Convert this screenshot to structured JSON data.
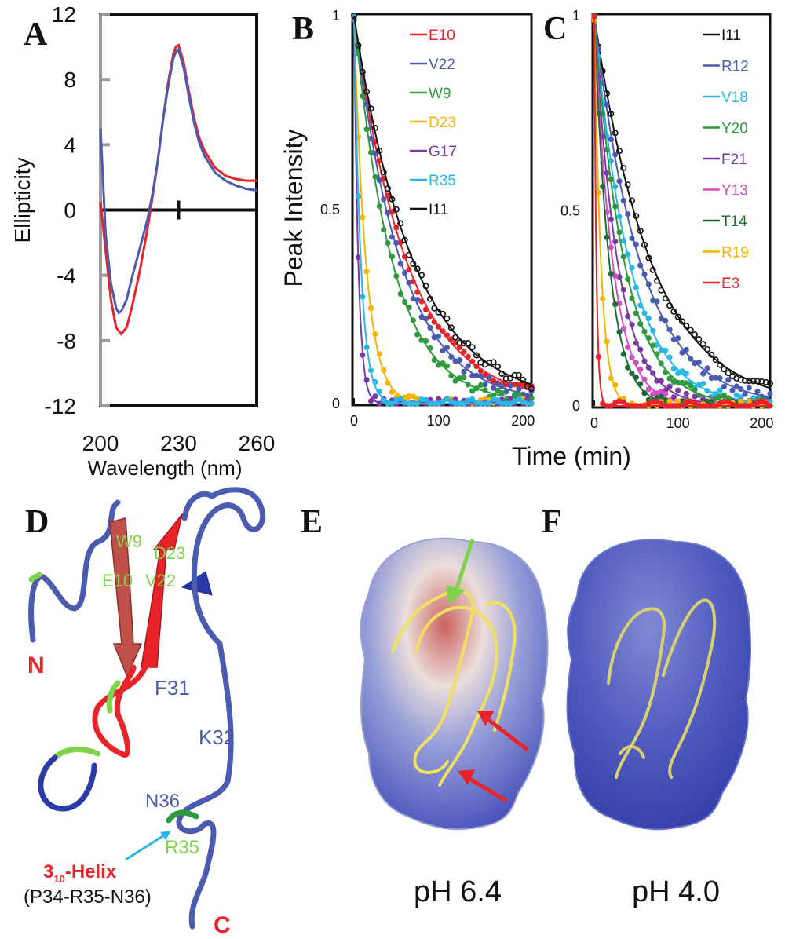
{
  "panels": {
    "A": "A",
    "B": "B",
    "C": "C",
    "D": "D",
    "E": "E",
    "F": "F"
  },
  "colors": {
    "red": "#e8232a",
    "blue": "#4b5bb0",
    "green": "#2e9a3e",
    "orange": "#f4b400",
    "purple": "#7a3aa6",
    "cyan": "#2ab7e6",
    "black": "#111111",
    "pink": "#d34fc0",
    "darkgreen": "#1c6b3a",
    "lime": "#7ed34a"
  },
  "chart_data": [
    {
      "panel": "A",
      "type": "line",
      "title": "",
      "xlabel": "Wavelength (nm)",
      "ylabel": "Ellipticity",
      "xlim": [
        200,
        260
      ],
      "ylim": [
        -12,
        12
      ],
      "xticks": [
        200,
        230,
        260
      ],
      "yticks": [
        12,
        8,
        4,
        0,
        -4,
        -8,
        -12
      ],
      "series": [
        {
          "color": "#e8232a",
          "x": [
            200,
            202,
            204,
            206,
            208,
            210,
            212,
            215,
            218,
            220,
            222,
            224,
            226,
            228,
            229,
            230,
            232,
            234,
            236,
            238,
            240,
            244,
            248,
            252,
            256,
            260
          ],
          "y": [
            0.5,
            -2.5,
            -5.5,
            -7.2,
            -7.6,
            -7.2,
            -6.0,
            -3.8,
            -1.2,
            0.8,
            3.0,
            5.5,
            7.8,
            9.6,
            10.0,
            10.1,
            9.0,
            7.2,
            5.6,
            4.4,
            3.6,
            2.6,
            2.1,
            1.9,
            1.8,
            1.8
          ]
        },
        {
          "color": "#4b5bb0",
          "x": [
            200,
            202,
            204,
            206,
            207,
            208,
            210,
            212,
            215,
            218,
            220,
            222,
            224,
            226,
            228,
            229,
            230,
            232,
            234,
            236,
            238,
            240,
            244,
            248,
            252,
            256,
            260
          ],
          "y": [
            5.0,
            -1.5,
            -4.5,
            -6.0,
            -6.3,
            -6.2,
            -5.5,
            -4.2,
            -2.4,
            -0.6,
            1.0,
            3.0,
            5.5,
            7.6,
            9.3,
            9.7,
            9.8,
            8.7,
            6.9,
            5.3,
            4.1,
            3.3,
            2.3,
            1.8,
            1.5,
            1.3,
            1.2
          ]
        }
      ]
    },
    {
      "panel": "B",
      "type": "scatter",
      "ylabel": "Peak Intensity",
      "xlim": [
        0,
        210
      ],
      "ylim": [
        0,
        1
      ],
      "xticks": [
        0,
        100,
        200
      ],
      "yticks": [
        0,
        0.5,
        1
      ],
      "series": [
        {
          "name": "E10",
          "color": "#e8232a",
          "tau": 62
        },
        {
          "name": "V22",
          "color": "#4b5bb0",
          "tau": 55
        },
        {
          "name": "W9",
          "color": "#2e9a3e",
          "tau": 45
        },
        {
          "name": "D23",
          "color": "#f4b400",
          "tau": 14
        },
        {
          "name": "G17",
          "color": "#7a3aa6",
          "tau": 5
        },
        {
          "name": "R35",
          "color": "#2ab7e6",
          "tau": 8
        },
        {
          "name": "I11",
          "color": "#111111",
          "tau": 70
        }
      ]
    },
    {
      "panel": "C",
      "type": "scatter",
      "xlim": [
        0,
        210
      ],
      "ylim": [
        0,
        1
      ],
      "xticks": [
        0,
        100,
        200
      ],
      "yticks": [
        0,
        0.5,
        1
      ],
      "xlabel": "Time (min)",
      "series": [
        {
          "name": "I11",
          "color": "#111111",
          "tau": 68
        },
        {
          "name": "R12",
          "color": "#4b5bb0",
          "tau": 55
        },
        {
          "name": "V18",
          "color": "#2ab7e6",
          "tau": 42
        },
        {
          "name": "Y20",
          "color": "#2e9a3e",
          "tau": 36
        },
        {
          "name": "F21",
          "color": "#7a3aa6",
          "tau": 28
        },
        {
          "name": "Y13",
          "color": "#d34fc0",
          "tau": 22
        },
        {
          "name": "T14",
          "color": "#1c6b3a",
          "tau": 18
        },
        {
          "name": "R19",
          "color": "#f4b400",
          "tau": 8
        },
        {
          "name": "E3",
          "color": "#e8232a",
          "tau": 2.5
        }
      ]
    }
  ],
  "structure_d": {
    "labels": {
      "W9": "W9",
      "D23": "D23",
      "E10": "E10",
      "V22": "V22",
      "N": "N",
      "C": "C",
      "F31": "F31",
      "K32": "K32",
      "N36": "N36",
      "R35": "R35",
      "helix_main": "3",
      "helix_sub": "10",
      "helix_rest": "-Helix",
      "helix_seq": "(P34-R35-N36)"
    }
  },
  "captions": {
    "E": "pH 6.4",
    "F": "pH 4.0"
  }
}
